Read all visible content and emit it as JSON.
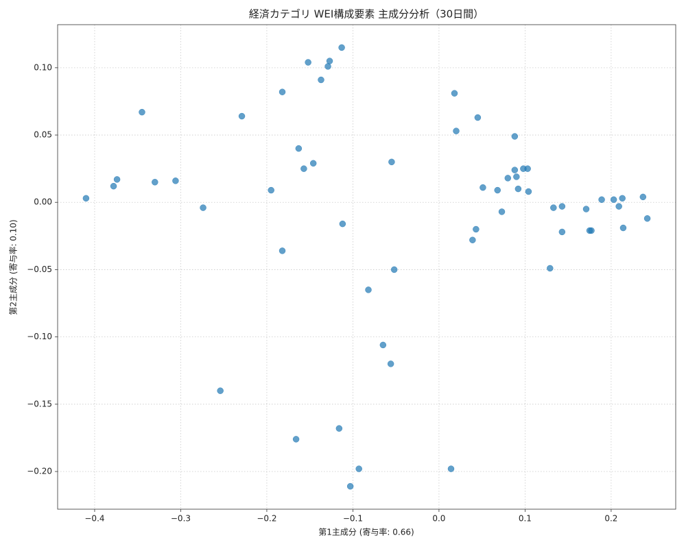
{
  "chart_data": {
    "type": "scatter",
    "title": "経済カテゴリ WEI構成要素 主成分分析（30日間）",
    "x_label": "第1主成分 (寄与率: 0.66)",
    "y_label": "第2主成分 (寄与率: 0.10)",
    "color": "#1f77b4",
    "grid": true,
    "xlim": [
      -0.443,
      0.275
    ],
    "ylim": [
      -0.228,
      0.132
    ],
    "xticks": [
      {
        "value": -0.4,
        "label": "−0.4"
      },
      {
        "value": -0.3,
        "label": "−0.3"
      },
      {
        "value": -0.2,
        "label": "−0.2"
      },
      {
        "value": -0.1,
        "label": "−0.1"
      },
      {
        "value": 0,
        "label": "0.0"
      },
      0.1,
      0.2
    ],
    "yticks": [
      {
        "value": -0.2,
        "label": "−0.20"
      },
      {
        "value": -0.15,
        "label": "−0.15"
      },
      {
        "value": -0.1,
        "label": "−0.10"
      },
      {
        "value": -0.05,
        "label": "−0.05"
      },
      {
        "value": 0,
        "label": "0.00"
      },
      {
        "value": 0.05,
        "label": "0.05"
      },
      {
        "value": 0.1,
        "label": "0.10"
      }
    ],
    "x": [
      -0.41,
      -0.378,
      -0.374,
      -0.345,
      -0.33,
      -0.306,
      -0.274,
      -0.254,
      -0.229,
      -0.195,
      -0.182,
      -0.182,
      -0.166,
      -0.163,
      -0.157,
      -0.152,
      -0.146,
      -0.137,
      -0.129,
      -0.127,
      -0.116,
      -0.113,
      -0.112,
      -0.103,
      -0.093,
      -0.082,
      -0.065,
      -0.056,
      -0.055,
      -0.052,
      0.014,
      0.018,
      0.02,
      0.039,
      0.043,
      0.045,
      0.051,
      0.068,
      0.073,
      0.08,
      0.088,
      0.088,
      0.09,
      0.092,
      0.098,
      0.103,
      0.104,
      0.129,
      0.133,
      0.143,
      0.143,
      0.171,
      0.175,
      0.177,
      0.189,
      0.203,
      0.209,
      0.213,
      0.214,
      0.237,
      0.242
    ],
    "values": [
      0.003,
      0.012,
      0.017,
      0.067,
      0.015,
      0.016,
      -0.004,
      -0.14,
      0.064,
      0.009,
      0.082,
      -0.036,
      -0.176,
      0.04,
      0.025,
      0.104,
      0.029,
      0.091,
      0.101,
      0.105,
      -0.168,
      0.115,
      -0.016,
      -0.211,
      -0.198,
      -0.065,
      -0.106,
      -0.12,
      0.03,
      -0.05,
      -0.198,
      0.081,
      0.053,
      -0.028,
      -0.02,
      0.063,
      0.011,
      0.009,
      -0.007,
      0.018,
      0.049,
      0.024,
      0.019,
      0.01,
      0.025,
      0.025,
      0.008,
      -0.049,
      -0.004,
      -0.003,
      -0.022,
      -0.005,
      -0.021,
      -0.021,
      0.002,
      0.002,
      -0.003,
      0.003,
      -0.019,
      0.004,
      -0.012
    ]
  }
}
